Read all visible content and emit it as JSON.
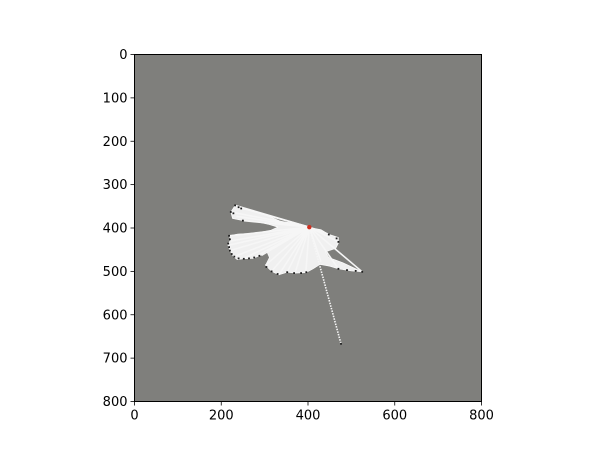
{
  "chart_data": {
    "type": "heatmap",
    "title": "",
    "xlabel": "",
    "ylabel": "",
    "xlim": [
      0,
      800
    ],
    "ylim": [
      800,
      0
    ],
    "y_inverted": true,
    "grid": false,
    "legend": "none",
    "x_ticks": [
      0,
      200,
      400,
      600,
      800
    ],
    "y_ticks": [
      0,
      100,
      200,
      300,
      400,
      500,
      600,
      700,
      800
    ],
    "colors": {
      "unknown": "#7f7f7c",
      "free": "#f0f0f0",
      "obstacle": "#202020",
      "robot": "#d03020",
      "axes": "#000000"
    },
    "robot_position": {
      "x": 403,
      "y": 398
    },
    "free_region_polygon": [
      [
        218,
        418
      ],
      [
        222,
        427
      ],
      [
        215,
        438
      ],
      [
        220,
        452
      ],
      [
        228,
        466
      ],
      [
        237,
        473
      ],
      [
        250,
        471
      ],
      [
        272,
        470
      ],
      [
        292,
        463
      ],
      [
        304,
        452
      ],
      [
        311,
        468
      ],
      [
        302,
        486
      ],
      [
        316,
        500
      ],
      [
        333,
        508
      ],
      [
        352,
        502
      ],
      [
        370,
        504
      ],
      [
        395,
        503
      ],
      [
        412,
        494
      ],
      [
        428,
        484
      ],
      [
        450,
        488
      ],
      [
        470,
        494
      ],
      [
        500,
        499
      ],
      [
        525,
        501
      ],
      [
        480,
        480
      ],
      [
        448,
        468
      ],
      [
        440,
        455
      ],
      [
        464,
        447
      ],
      [
        470,
        435
      ],
      [
        470,
        422
      ],
      [
        447,
        414
      ],
      [
        430,
        404
      ],
      [
        410,
        400
      ],
      [
        392,
        398
      ],
      [
        365,
        388
      ],
      [
        340,
        386
      ],
      [
        310,
        373
      ],
      [
        283,
        363
      ],
      [
        252,
        355
      ],
      [
        232,
        348
      ],
      [
        222,
        363
      ],
      [
        226,
        378
      ],
      [
        250,
        383
      ],
      [
        283,
        386
      ],
      [
        310,
        392
      ],
      [
        330,
        398
      ],
      [
        315,
        405
      ],
      [
        288,
        410
      ],
      [
        260,
        413
      ],
      [
        238,
        414
      ]
    ],
    "rays": [
      {
        "x": 232,
        "y": 348
      },
      {
        "x": 240,
        "y": 352
      },
      {
        "x": 222,
        "y": 363
      },
      {
        "x": 235,
        "y": 373
      },
      {
        "x": 250,
        "y": 383
      },
      {
        "x": 218,
        "y": 418
      },
      {
        "x": 222,
        "y": 430
      },
      {
        "x": 215,
        "y": 440
      },
      {
        "x": 220,
        "y": 452
      },
      {
        "x": 230,
        "y": 466
      },
      {
        "x": 250,
        "y": 471
      },
      {
        "x": 272,
        "y": 470
      },
      {
        "x": 293,
        "y": 463
      },
      {
        "x": 302,
        "y": 486
      },
      {
        "x": 316,
        "y": 500
      },
      {
        "x": 333,
        "y": 508
      },
      {
        "x": 352,
        "y": 502
      },
      {
        "x": 370,
        "y": 504
      },
      {
        "x": 395,
        "y": 503
      },
      {
        "x": 430,
        "y": 478
      },
      {
        "x": 470,
        "y": 494
      },
      {
        "x": 525,
        "y": 501
      },
      {
        "x": 470,
        "y": 432
      },
      {
        "x": 447,
        "y": 414
      },
      {
        "x": 476,
        "y": 667
      }
    ],
    "obstacle_points": [
      [
        232,
        348
      ],
      [
        240,
        352
      ],
      [
        246,
        355
      ],
      [
        222,
        363
      ],
      [
        228,
        366
      ],
      [
        250,
        383
      ],
      [
        218,
        418
      ],
      [
        220,
        426
      ],
      [
        216,
        436
      ],
      [
        218,
        444
      ],
      [
        220,
        452
      ],
      [
        224,
        460
      ],
      [
        230,
        466
      ],
      [
        240,
        470
      ],
      [
        252,
        471
      ],
      [
        264,
        470
      ],
      [
        276,
        468
      ],
      [
        288,
        464
      ],
      [
        304,
        490
      ],
      [
        316,
        500
      ],
      [
        330,
        506
      ],
      [
        352,
        502
      ],
      [
        368,
        504
      ],
      [
        384,
        504
      ],
      [
        396,
        502
      ],
      [
        470,
        494
      ],
      [
        490,
        497
      ],
      [
        510,
        499
      ],
      [
        525,
        501
      ],
      [
        470,
        432
      ],
      [
        466,
        424
      ],
      [
        448,
        415
      ],
      [
        476,
        667
      ]
    ]
  }
}
